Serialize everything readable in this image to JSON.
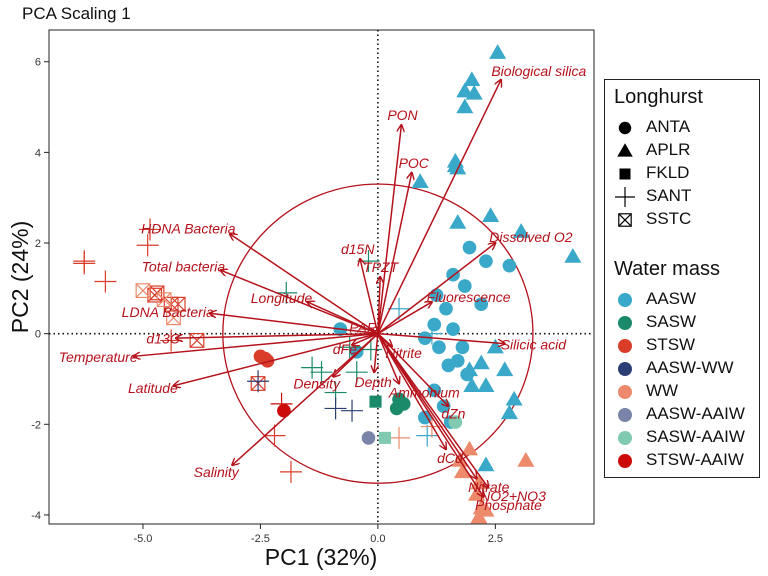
{
  "chart_data": {
    "type": "scatter",
    "title": "PCA Scaling 1",
    "xlabel": "PC1 (32%)",
    "ylabel": "PC2 (24%)",
    "xlim": [
      -7.0,
      4.6
    ],
    "ylim": [
      -4.2,
      6.7
    ],
    "xticks": [
      -5.0,
      -2.5,
      0.0,
      2.5
    ],
    "xtick_labels": [
      "-5.0",
      "-2.5",
      "0.0",
      "2.5"
    ],
    "yticks": [
      -4,
      -2,
      0,
      2,
      4,
      6
    ],
    "ytick_labels": [
      "-4",
      "-2",
      "0",
      "2",
      "4",
      "6"
    ],
    "grid": false,
    "reference_lines": {
      "x": 0,
      "y": 0,
      "style": "dotted"
    },
    "circle": {
      "center": [
        0,
        0
      ],
      "radius": 3.3,
      "color": "#b5121b"
    },
    "vector_color": "#b5121b",
    "vectors": [
      {
        "label": "Biological silica",
        "x": 2.62,
        "y": 5.6
      },
      {
        "label": "PON",
        "x": 0.5,
        "y": 4.6
      },
      {
        "label": "POC",
        "x": 0.72,
        "y": 3.55
      },
      {
        "label": "HDNA Bacteria",
        "x": -3.15,
        "y": 2.2
      },
      {
        "label": "Total bacteria",
        "x": -3.35,
        "y": 1.4
      },
      {
        "label": "d15N",
        "x": -0.38,
        "y": 1.65
      },
      {
        "label": "TPZT",
        "x": 0.05,
        "y": 1.25
      },
      {
        "label": "Dissolved O2",
        "x": 2.5,
        "y": 2.0
      },
      {
        "label": "LDNA Bacteria",
        "x": -3.58,
        "y": 0.45
      },
      {
        "label": "Longitude",
        "x": -1.5,
        "y": 0.7
      },
      {
        "label": "Fluorescence",
        "x": 1.15,
        "y": 0.7
      },
      {
        "label": "PAR",
        "x": -0.12,
        "y": 0.05
      },
      {
        "label": "Silicic acid",
        "x": 2.7,
        "y": -0.22
      },
      {
        "label": "d13C",
        "x": -4.3,
        "y": -0.1
      },
      {
        "label": "dFe",
        "x": -0.55,
        "y": -0.25
      },
      {
        "label": "Nitrite",
        "x": 0.3,
        "y": -0.28
      },
      {
        "label": "Temperature",
        "x": -5.2,
        "y": -0.5
      },
      {
        "label": "Depth",
        "x": -0.08,
        "y": -0.85
      },
      {
        "label": "Density",
        "x": -0.95,
        "y": -0.95
      },
      {
        "label": "Ammonium",
        "x": 0.45,
        "y": -1.1
      },
      {
        "label": "Latitude",
        "x": -4.35,
        "y": -1.15
      },
      {
        "label": "dZn",
        "x": 1.5,
        "y": -1.6
      },
      {
        "label": "Salinity",
        "x": -3.1,
        "y": -2.9
      },
      {
        "label": "dCd",
        "x": 1.45,
        "y": -2.55
      },
      {
        "label": "Nitrate",
        "x": 2.1,
        "y": -3.2
      },
      {
        "label": "NO2+NO3",
        "x": 2.35,
        "y": -3.4
      },
      {
        "label": "Phosphate",
        "x": 2.25,
        "y": -3.6
      }
    ],
    "legend": {
      "placement": "right",
      "shape_title": "Longhurst",
      "shapes": [
        {
          "label": "ANTA",
          "shape": "circle"
        },
        {
          "label": "APLR",
          "shape": "triangle"
        },
        {
          "label": "FKLD",
          "shape": "square"
        },
        {
          "label": "SANT",
          "shape": "plus"
        },
        {
          "label": "SSTC",
          "shape": "boxx"
        }
      ],
      "color_title": "Water mass",
      "colors": [
        {
          "label": "AASW",
          "color": "#3aa8c8"
        },
        {
          "label": "SASW",
          "color": "#1b8a6b"
        },
        {
          "label": "STSW",
          "color": "#d93d2a"
        },
        {
          "label": "AASW-WW",
          "color": "#2c3e73"
        },
        {
          "label": "WW",
          "color": "#ee8a6c"
        },
        {
          "label": "AASW-AAIW",
          "color": "#7a84a8"
        },
        {
          "label": "SASW-AAIW",
          "color": "#7fcab0"
        },
        {
          "label": "STSW-AAIW",
          "color": "#cc0a0a"
        }
      ]
    },
    "points": [
      {
        "x": 2.55,
        "y": 6.2,
        "shape": "triangle",
        "water": "AASW"
      },
      {
        "x": 2.0,
        "y": 5.6,
        "shape": "triangle",
        "water": "AASW"
      },
      {
        "x": 1.85,
        "y": 5.35,
        "shape": "triangle",
        "water": "AASW"
      },
      {
        "x": 2.05,
        "y": 5.3,
        "shape": "triangle",
        "water": "AASW"
      },
      {
        "x": 1.85,
        "y": 5.0,
        "shape": "triangle",
        "water": "AASW"
      },
      {
        "x": 1.65,
        "y": 3.8,
        "shape": "triangle",
        "water": "AASW"
      },
      {
        "x": 1.7,
        "y": 3.65,
        "shape": "triangle",
        "water": "AASW"
      },
      {
        "x": 1.65,
        "y": 3.7,
        "shape": "triangle",
        "water": "AASW"
      },
      {
        "x": 0.9,
        "y": 3.35,
        "shape": "triangle",
        "water": "AASW"
      },
      {
        "x": 1.7,
        "y": 2.45,
        "shape": "triangle",
        "water": "AASW"
      },
      {
        "x": 2.4,
        "y": 2.6,
        "shape": "triangle",
        "water": "AASW"
      },
      {
        "x": 3.05,
        "y": 2.25,
        "shape": "triangle",
        "water": "AASW"
      },
      {
        "x": 4.15,
        "y": 1.7,
        "shape": "triangle",
        "water": "AASW"
      },
      {
        "x": 1.95,
        "y": 1.9,
        "shape": "circle",
        "water": "AASW"
      },
      {
        "x": 2.8,
        "y": 1.5,
        "shape": "circle",
        "water": "AASW"
      },
      {
        "x": 2.3,
        "y": 1.6,
        "shape": "circle",
        "water": "AASW"
      },
      {
        "x": 1.6,
        "y": 1.3,
        "shape": "circle",
        "water": "AASW"
      },
      {
        "x": 1.85,
        "y": 1.05,
        "shape": "circle",
        "water": "AASW"
      },
      {
        "x": 1.25,
        "y": 0.85,
        "shape": "circle",
        "water": "AASW"
      },
      {
        "x": 1.45,
        "y": 0.55,
        "shape": "circle",
        "water": "AASW"
      },
      {
        "x": 2.2,
        "y": 0.65,
        "shape": "circle",
        "water": "AASW"
      },
      {
        "x": 1.2,
        "y": 0.2,
        "shape": "circle",
        "water": "AASW"
      },
      {
        "x": 1.6,
        "y": 0.1,
        "shape": "circle",
        "water": "AASW"
      },
      {
        "x": 1.0,
        "y": -0.1,
        "shape": "circle",
        "water": "AASW"
      },
      {
        "x": 1.3,
        "y": -0.3,
        "shape": "circle",
        "water": "AASW"
      },
      {
        "x": 1.8,
        "y": -0.3,
        "shape": "circle",
        "water": "AASW"
      },
      {
        "x": 1.7,
        "y": -0.6,
        "shape": "circle",
        "water": "AASW"
      },
      {
        "x": 1.9,
        "y": -0.9,
        "shape": "circle",
        "water": "AASW"
      },
      {
        "x": 1.5,
        "y": -0.7,
        "shape": "circle",
        "water": "AASW"
      },
      {
        "x": 1.2,
        "y": -1.25,
        "shape": "circle",
        "water": "AASW"
      },
      {
        "x": 1.4,
        "y": -1.6,
        "shape": "circle",
        "water": "AASW"
      },
      {
        "x": 1.0,
        "y": -1.85,
        "shape": "circle",
        "water": "AASW"
      },
      {
        "x": 1.55,
        "y": -1.95,
        "shape": "circle",
        "water": "AASW"
      },
      {
        "x": -0.8,
        "y": 0.1,
        "shape": "circle",
        "water": "AASW"
      },
      {
        "x": -0.45,
        "y": -0.4,
        "shape": "circle",
        "water": "AASW"
      },
      {
        "x": 2.5,
        "y": -0.3,
        "shape": "triangle",
        "water": "AASW"
      },
      {
        "x": 2.2,
        "y": -0.65,
        "shape": "triangle",
        "water": "AASW"
      },
      {
        "x": 2.7,
        "y": -0.8,
        "shape": "triangle",
        "water": "AASW"
      },
      {
        "x": 1.95,
        "y": -0.8,
        "shape": "triangle",
        "water": "AASW"
      },
      {
        "x": 2.3,
        "y": -1.15,
        "shape": "triangle",
        "water": "AASW"
      },
      {
        "x": 2.0,
        "y": -1.15,
        "shape": "triangle",
        "water": "AASW"
      },
      {
        "x": 2.9,
        "y": -1.45,
        "shape": "triangle",
        "water": "AASW"
      },
      {
        "x": 2.8,
        "y": -1.75,
        "shape": "triangle",
        "water": "AASW"
      },
      {
        "x": 2.3,
        "y": -2.9,
        "shape": "triangle",
        "water": "AASW"
      },
      {
        "x": 0.45,
        "y": 0.55,
        "shape": "plus",
        "water": "AASW"
      },
      {
        "x": 1.15,
        "y": 0.0,
        "shape": "plus",
        "water": "AASW"
      },
      {
        "x": 1.05,
        "y": -2.25,
        "shape": "plus",
        "water": "AASW"
      },
      {
        "x": 0.55,
        "y": -1.55,
        "shape": "circle",
        "water": "SASW"
      },
      {
        "x": 0.4,
        "y": -1.65,
        "shape": "circle",
        "water": "SASW"
      },
      {
        "x": 0.45,
        "y": -1.45,
        "shape": "circle",
        "water": "SASW"
      },
      {
        "x": -0.05,
        "y": -1.5,
        "shape": "square",
        "water": "SASW"
      },
      {
        "x": -1.95,
        "y": 0.9,
        "shape": "plus",
        "water": "SASW"
      },
      {
        "x": -1.4,
        "y": -0.75,
        "shape": "plus",
        "water": "SASW"
      },
      {
        "x": -1.2,
        "y": -0.85,
        "shape": "plus",
        "water": "SASW"
      },
      {
        "x": -0.45,
        "y": -0.85,
        "shape": "plus",
        "water": "SASW"
      },
      {
        "x": -0.9,
        "y": -1.3,
        "shape": "plus",
        "water": "SASW"
      },
      {
        "x": -0.2,
        "y": 1.6,
        "shape": "plus",
        "water": "SASW"
      },
      {
        "x": -0.6,
        "y": -0.3,
        "shape": "plus",
        "water": "SASW"
      },
      {
        "x": -0.15,
        "y": -0.35,
        "shape": "plus",
        "water": "SASW"
      },
      {
        "x": -6.25,
        "y": 1.6,
        "shape": "plus",
        "water": "STSW"
      },
      {
        "x": -6.25,
        "y": 1.55,
        "shape": "plus",
        "water": "STSW"
      },
      {
        "x": -5.8,
        "y": 1.15,
        "shape": "plus",
        "water": "STSW"
      },
      {
        "x": -4.85,
        "y": 2.3,
        "shape": "plus",
        "water": "STSW"
      },
      {
        "x": -4.9,
        "y": 1.95,
        "shape": "plus",
        "water": "STSW"
      },
      {
        "x": -4.4,
        "y": -0.15,
        "shape": "plus",
        "water": "STSW"
      },
      {
        "x": -2.2,
        "y": -2.25,
        "shape": "plus",
        "water": "STSW"
      },
      {
        "x": -1.85,
        "y": -3.05,
        "shape": "plus",
        "water": "STSW"
      },
      {
        "x": -2.5,
        "y": -0.5,
        "shape": "circle",
        "water": "STSW"
      },
      {
        "x": -2.35,
        "y": -0.6,
        "shape": "circle",
        "water": "STSW"
      },
      {
        "x": -2.4,
        "y": -0.55,
        "shape": "circle",
        "water": "STSW"
      },
      {
        "x": -4.7,
        "y": 0.9,
        "shape": "boxx",
        "water": "STSW"
      },
      {
        "x": -4.75,
        "y": 0.85,
        "shape": "boxx",
        "water": "STSW"
      },
      {
        "x": -4.4,
        "y": 0.65,
        "shape": "boxx",
        "water": "STSW"
      },
      {
        "x": -4.25,
        "y": 0.65,
        "shape": "boxx",
        "water": "STSW"
      },
      {
        "x": -3.85,
        "y": -0.15,
        "shape": "boxx",
        "water": "STSW"
      },
      {
        "x": -2.55,
        "y": -1.1,
        "shape": "boxx",
        "water": "STSW"
      },
      {
        "x": -5.0,
        "y": 0.95,
        "shape": "boxx",
        "water": "WW"
      },
      {
        "x": -4.55,
        "y": 0.75,
        "shape": "boxx",
        "water": "WW"
      },
      {
        "x": -4.35,
        "y": 0.35,
        "shape": "boxx",
        "water": "WW"
      },
      {
        "x": -0.55,
        "y": -1.7,
        "shape": "plus",
        "water": "AASW-WW"
      },
      {
        "x": -0.9,
        "y": -1.65,
        "shape": "plus",
        "water": "AASW-WW"
      },
      {
        "x": -2.55,
        "y": -1.05,
        "shape": "plus",
        "water": "AASW-WW"
      },
      {
        "x": 1.95,
        "y": -2.55,
        "shape": "triangle",
        "water": "WW"
      },
      {
        "x": 3.15,
        "y": -2.8,
        "shape": "triangle",
        "water": "WW"
      },
      {
        "x": 1.8,
        "y": -3.05,
        "shape": "triangle",
        "water": "WW"
      },
      {
        "x": 2.15,
        "y": -3.3,
        "shape": "triangle",
        "water": "WW"
      },
      {
        "x": 2.15,
        "y": -4.05,
        "shape": "triangle",
        "water": "WW"
      },
      {
        "x": 2.2,
        "y": -3.85,
        "shape": "triangle",
        "water": "WW"
      },
      {
        "x": 1.75,
        "y": -2.8,
        "shape": "triangle",
        "water": "WW"
      },
      {
        "x": 2.1,
        "y": -3.55,
        "shape": "triangle",
        "water": "WW"
      },
      {
        "x": 2.3,
        "y": -3.9,
        "shape": "triangle",
        "water": "WW"
      },
      {
        "x": 0.45,
        "y": -2.3,
        "shape": "plus",
        "water": "WW"
      },
      {
        "x": 1.15,
        "y": -2.05,
        "shape": "plus",
        "water": "WW"
      },
      {
        "x": -0.2,
        "y": -2.3,
        "shape": "circle",
        "water": "AASW-AAIW"
      },
      {
        "x": 0.15,
        "y": -2.3,
        "shape": "square",
        "water": "SASW-AAIW"
      },
      {
        "x": 1.65,
        "y": -1.95,
        "shape": "circle",
        "water": "SASW-AAIW"
      },
      {
        "x": -2.0,
        "y": -1.7,
        "shape": "circle",
        "water": "STSW-AAIW"
      },
      {
        "x": -2.05,
        "y": -1.55,
        "shape": "plus",
        "water": "STSW-AAIW"
      }
    ]
  }
}
